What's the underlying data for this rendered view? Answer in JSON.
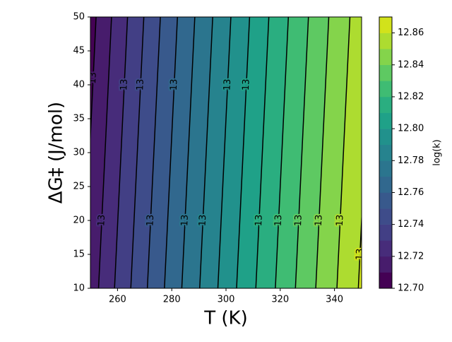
{
  "chart_data": {
    "type": "contourf",
    "xlabel": "T (K)",
    "ylabel": "ΔG‡ (J/mol)",
    "colorbar_label": "log(k)",
    "xlim": [
      250,
      350
    ],
    "ylim": [
      10,
      50
    ],
    "xticks": [
      260,
      280,
      300,
      320,
      340
    ],
    "yticks": [
      10,
      15,
      20,
      25,
      30,
      35,
      40,
      45,
      50
    ],
    "levels": [
      12.7,
      12.71,
      12.72,
      12.73,
      12.74,
      12.75,
      12.76,
      12.77,
      12.78,
      12.79,
      12.8,
      12.81,
      12.82,
      12.83,
      12.84,
      12.85,
      12.86,
      12.87
    ],
    "colors": [
      "#440154",
      "#471c6c",
      "#472c7a",
      "#423f85",
      "#3e4c8a",
      "#38598c",
      "#31688e",
      "#2b758e",
      "#26838e",
      "#21918c",
      "#1fa188",
      "#2aae80",
      "#3fbc73",
      "#5ec962",
      "#84d44b",
      "#addc30",
      "#d2e21b"
    ],
    "colorbar_ticks": [
      {
        "value": 12.7,
        "label": "12.70"
      },
      12.72,
      12.74,
      12.76,
      12.78,
      {
        "value": 12.8,
        "label": "12.80"
      },
      12.82,
      12.84,
      12.86
    ],
    "contour_lines": [
      {
        "x": [
          247.3,
          252.1
        ],
        "y": [
          10,
          50
        ],
        "label": "13"
      },
      {
        "x": [
          253.0,
          257.8
        ],
        "y": [
          10,
          50
        ],
        "label": "13"
      },
      {
        "x": [
          258.9,
          263.7
        ],
        "y": [
          10,
          50
        ],
        "label": "13"
      },
      {
        "x": [
          264.9,
          269.7
        ],
        "y": [
          10,
          50
        ],
        "label": "13"
      },
      {
        "x": [
          271.0,
          275.8
        ],
        "y": [
          10,
          50
        ],
        "label": "13"
      },
      {
        "x": [
          277.3,
          282.1
        ],
        "y": [
          10,
          50
        ],
        "label": "13"
      },
      {
        "x": [
          283.7,
          288.5
        ],
        "y": [
          10,
          50
        ],
        "label": "13"
      },
      {
        "x": [
          290.3,
          295.1
        ],
        "y": [
          10,
          50
        ],
        "label": "13"
      },
      {
        "x": [
          297.0,
          301.8
        ],
        "y": [
          10,
          50
        ],
        "label": "13"
      },
      {
        "x": [
          303.9,
          308.7
        ],
        "y": [
          10,
          50
        ],
        "label": "13"
      },
      {
        "x": [
          311.0,
          315.8
        ],
        "y": [
          10,
          50
        ],
        "label": "13"
      },
      {
        "x": [
          318.2,
          323.0
        ],
        "y": [
          10,
          50
        ],
        "label": "13"
      },
      {
        "x": [
          325.6,
          330.4
        ],
        "y": [
          10,
          50
        ],
        "label": "13"
      },
      {
        "x": [
          333.1,
          337.9
        ],
        "y": [
          10,
          50
        ],
        "label": "13"
      },
      {
        "x": [
          340.9,
          345.7
        ],
        "y": [
          10,
          50
        ],
        "label": "13"
      },
      {
        "x": [
          348.8,
          353.6
        ],
        "y": [
          10,
          50
        ],
        "label": "13"
      }
    ]
  }
}
